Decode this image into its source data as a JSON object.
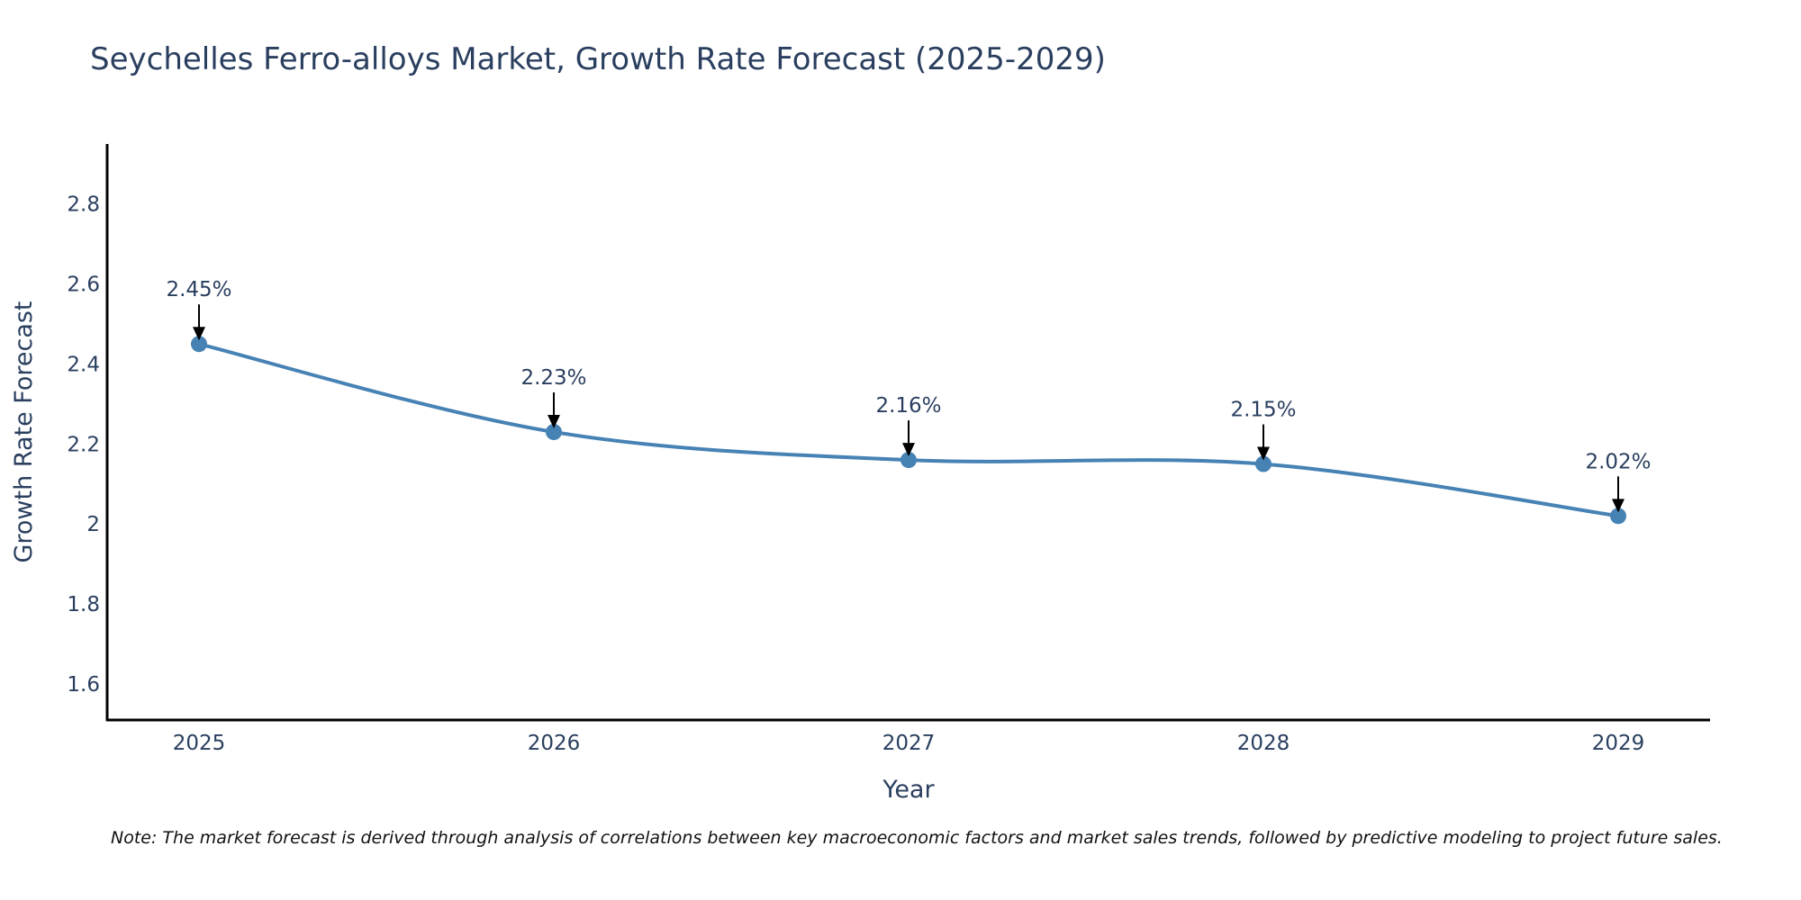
{
  "chart_data": {
    "type": "line",
    "title": "Seychelles Ferro-alloys Market, Growth Rate Forecast (2025-2029)",
    "xlabel": "Year",
    "ylabel": "Growth Rate Forecast",
    "categories": [
      "2025",
      "2026",
      "2027",
      "2028",
      "2029"
    ],
    "values": [
      2.45,
      2.23,
      2.16,
      2.15,
      2.02
    ],
    "data_labels": [
      "2.45%",
      "2.23%",
      "2.16%",
      "2.15%",
      "2.02%"
    ],
    "yticks": [
      1.6,
      1.8,
      2,
      2.2,
      2.4,
      2.6,
      2.8
    ],
    "ytick_labels": [
      "1.6",
      "1.8",
      "2",
      "2.2",
      "2.4",
      "2.6",
      "2.8"
    ],
    "ylim": [
      1.51,
      2.95
    ],
    "grid": false,
    "line_shape": "spline",
    "colors": {
      "line": "#4682b4",
      "marker": "#4682b4",
      "arrow": "#000000",
      "text": "#2a3f5f",
      "axis": "#000000"
    }
  },
  "footnote": "Note: The market forecast is derived through analysis of correlations between key macroeconomic factors and market sales trends, followed by predictive modeling to project future sales."
}
